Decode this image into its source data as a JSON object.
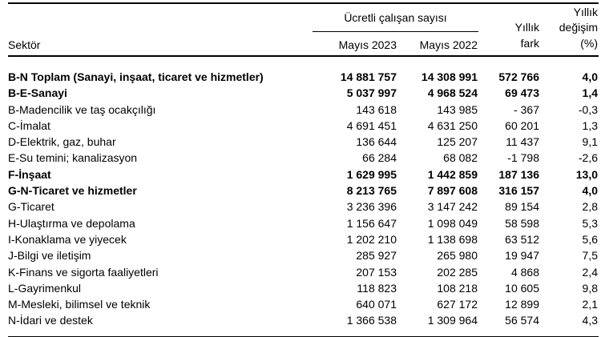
{
  "colors": {
    "background": "#ffffff",
    "text": "#000000",
    "rule": "#000000"
  },
  "table": {
    "header": {
      "sector": "Sektör",
      "group": "Ücretli çalışan sayısı",
      "col_2023": "Mayıs 2023",
      "col_2022": "Mayıs 2022",
      "diff_line1": "Yıllık",
      "diff_line2": "fark",
      "pct_line1": "Yıllık",
      "pct_line2": "değişim",
      "pct_line3": "(%)"
    },
    "rows": [
      {
        "sector": "B-N Toplam (Sanayi, inşaat, ticaret ve hizmetler)",
        "may2023": "14 881 757",
        "may2022": "14 308 991",
        "diff": "572 766",
        "pct": "4,0",
        "bold": true
      },
      {
        "sector": "B-E-Sanayi",
        "may2023": "5 037 997",
        "may2022": "4 968 524",
        "diff": "69 473",
        "pct": "1,4",
        "bold": true
      },
      {
        "sector": "B-Madencilik ve taş ocakçılığı",
        "may2023": "143 618",
        "may2022": "143 985",
        "diff": "- 367",
        "pct": "-0,3",
        "bold": false
      },
      {
        "sector": "C-İmalat",
        "may2023": "4 691 451",
        "may2022": "4 631 250",
        "diff": "60 201",
        "pct": "1,3",
        "bold": false
      },
      {
        "sector": "D-Elektrik, gaz, buhar",
        "may2023": "136 644",
        "may2022": "125 207",
        "diff": "11 437",
        "pct": "9,1",
        "bold": false
      },
      {
        "sector": "E-Su temini; kanalizasyon",
        "may2023": "66 284",
        "may2022": "68 082",
        "diff": "-1 798",
        "pct": "-2,6",
        "bold": false
      },
      {
        "sector": "F-İnşaat",
        "may2023": "1 629 995",
        "may2022": "1 442 859",
        "diff": "187 136",
        "pct": "13,0",
        "bold": true
      },
      {
        "sector": "G-N-Ticaret ve hizmetler",
        "may2023": "8 213 765",
        "may2022": "7 897 608",
        "diff": "316 157",
        "pct": "4,0",
        "bold": true
      },
      {
        "sector": "G-Ticaret",
        "may2023": "3 236 396",
        "may2022": "3 147 242",
        "diff": "89 154",
        "pct": "2,8",
        "bold": false
      },
      {
        "sector": "H-Ulaştırma ve depolama",
        "may2023": "1 156 647",
        "may2022": "1 098 049",
        "diff": "58 598",
        "pct": "5,3",
        "bold": false
      },
      {
        "sector": "I-Konaklama ve yiyecek",
        "may2023": "1 202 210",
        "may2022": "1 138 698",
        "diff": "63 512",
        "pct": "5,6",
        "bold": false
      },
      {
        "sector": "J-Bilgi ve iletişim",
        "may2023": "285 927",
        "may2022": "265 980",
        "diff": "19 947",
        "pct": "7,5",
        "bold": false
      },
      {
        "sector": "K-Finans ve sigorta faaliyetleri",
        "may2023": "207 153",
        "may2022": "202 285",
        "diff": "4 868",
        "pct": "2,4",
        "bold": false
      },
      {
        "sector": "L-Gayrimenkul",
        "may2023": "118 823",
        "may2022": "108 218",
        "diff": "10 605",
        "pct": "9,8",
        "bold": false
      },
      {
        "sector": "M-Mesleki, bilimsel ve teknik",
        "may2023": "640 071",
        "may2022": "627 172",
        "diff": "12 899",
        "pct": "2,1",
        "bold": false
      },
      {
        "sector": "N-İdari ve destek",
        "may2023": "1 366 538",
        "may2022": "1 309 964",
        "diff": "56 574",
        "pct": "4,3",
        "bold": false
      }
    ]
  },
  "chart_data": {
    "type": "table",
    "title": "Ücretli çalışan sayısı",
    "columns": [
      "Sektör",
      "Mayıs 2023",
      "Mayıs 2022",
      "Yıllık fark",
      "Yıllık değişim (%)"
    ],
    "rows": [
      {
        "sector": "B-N Toplam (Sanayi, inşaat, ticaret ve hizmetler)",
        "may_2023": 14881757,
        "may_2022": 14308991,
        "annual_diff": 572766,
        "annual_change_pct": 4.0
      },
      {
        "sector": "B-E-Sanayi",
        "may_2023": 5037997,
        "may_2022": 4968524,
        "annual_diff": 69473,
        "annual_change_pct": 1.4
      },
      {
        "sector": "B-Madencilik ve taş ocakçılığı",
        "may_2023": 143618,
        "may_2022": 143985,
        "annual_diff": -367,
        "annual_change_pct": -0.3
      },
      {
        "sector": "C-İmalat",
        "may_2023": 4691451,
        "may_2022": 4631250,
        "annual_diff": 60201,
        "annual_change_pct": 1.3
      },
      {
        "sector": "D-Elektrik, gaz, buhar",
        "may_2023": 136644,
        "may_2022": 125207,
        "annual_diff": 11437,
        "annual_change_pct": 9.1
      },
      {
        "sector": "E-Su temini; kanalizasyon",
        "may_2023": 66284,
        "may_2022": 68082,
        "annual_diff": -1798,
        "annual_change_pct": -2.6
      },
      {
        "sector": "F-İnşaat",
        "may_2023": 1629995,
        "may_2022": 1442859,
        "annual_diff": 187136,
        "annual_change_pct": 13.0
      },
      {
        "sector": "G-N-Ticaret ve hizmetler",
        "may_2023": 8213765,
        "may_2022": 7897608,
        "annual_diff": 316157,
        "annual_change_pct": 4.0
      },
      {
        "sector": "G-Ticaret",
        "may_2023": 3236396,
        "may_2022": 3147242,
        "annual_diff": 89154,
        "annual_change_pct": 2.8
      },
      {
        "sector": "H-Ulaştırma ve depolama",
        "may_2023": 1156647,
        "may_2022": 1098049,
        "annual_diff": 58598,
        "annual_change_pct": 5.3
      },
      {
        "sector": "I-Konaklama ve yiyecek",
        "may_2023": 1202210,
        "may_2022": 1138698,
        "annual_diff": 63512,
        "annual_change_pct": 5.6
      },
      {
        "sector": "J-Bilgi ve iletişim",
        "may_2023": 285927,
        "may_2022": 265980,
        "annual_diff": 19947,
        "annual_change_pct": 7.5
      },
      {
        "sector": "K-Finans ve sigorta faaliyetleri",
        "may_2023": 207153,
        "may_2022": 202285,
        "annual_diff": 4868,
        "annual_change_pct": 2.4
      },
      {
        "sector": "L-Gayrimenkul",
        "may_2023": 118823,
        "may_2022": 108218,
        "annual_diff": 10605,
        "annual_change_pct": 9.8
      },
      {
        "sector": "M-Mesleki, bilimsel ve teknik",
        "may_2023": 640071,
        "may_2022": 627172,
        "annual_diff": 12899,
        "annual_change_pct": 2.1
      },
      {
        "sector": "N-İdari ve destek",
        "may_2023": 1366538,
        "may_2022": 1309964,
        "annual_diff": 56574,
        "annual_change_pct": 4.3
      }
    ]
  }
}
